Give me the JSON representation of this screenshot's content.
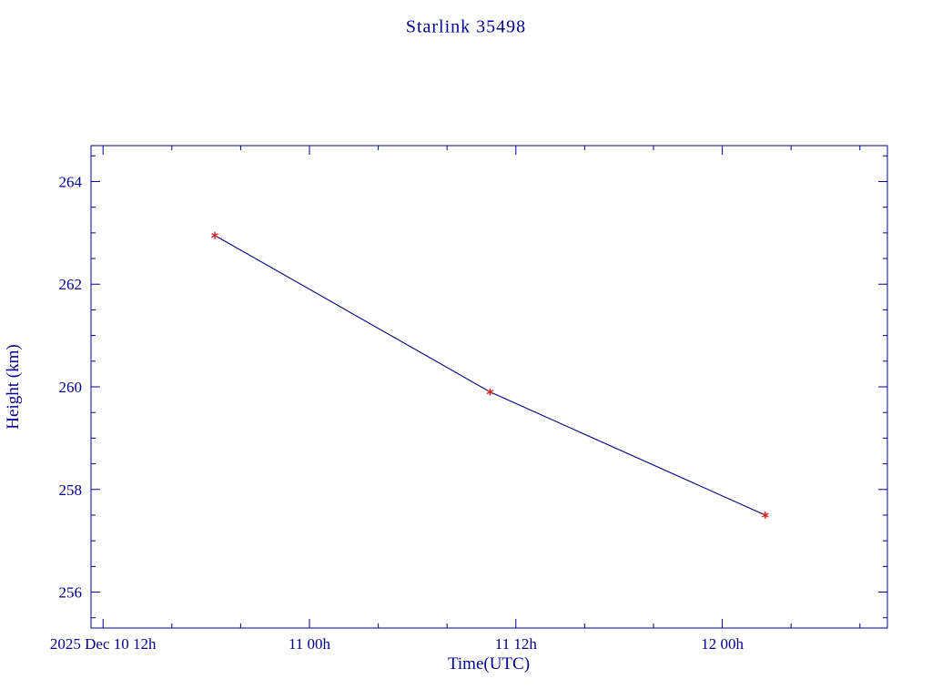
{
  "chart_data": {
    "type": "line",
    "title": "Starlink 35498",
    "xlabel": "Time(UTC)",
    "ylabel": "Height (km)",
    "x_unit": "hours since 2025 Dec 10 12:00 UTC",
    "xlim": [
      -0.7,
      45.6
    ],
    "ylim": [
      255.3,
      264.7
    ],
    "x_major_ticks": [
      0,
      12,
      24,
      36
    ],
    "x_tick_labels": [
      "2025 Dec 10  12h",
      "11 00h",
      "11 12h",
      "12 00h"
    ],
    "x_minor_step": 4,
    "y_major_ticks": [
      256,
      258,
      260,
      262,
      264
    ],
    "y_minor_step": 0.5,
    "series": [
      {
        "name": "height",
        "x": [
          6.5,
          22.5,
          38.5
        ],
        "y": [
          262.95,
          259.9,
          257.5
        ],
        "line_color": "#000080",
        "marker": "asterisk",
        "marker_color": "#cc2222"
      }
    ],
    "colors": {
      "axis": "#00008B",
      "text": "#00008B",
      "background": "#ffffff"
    }
  }
}
